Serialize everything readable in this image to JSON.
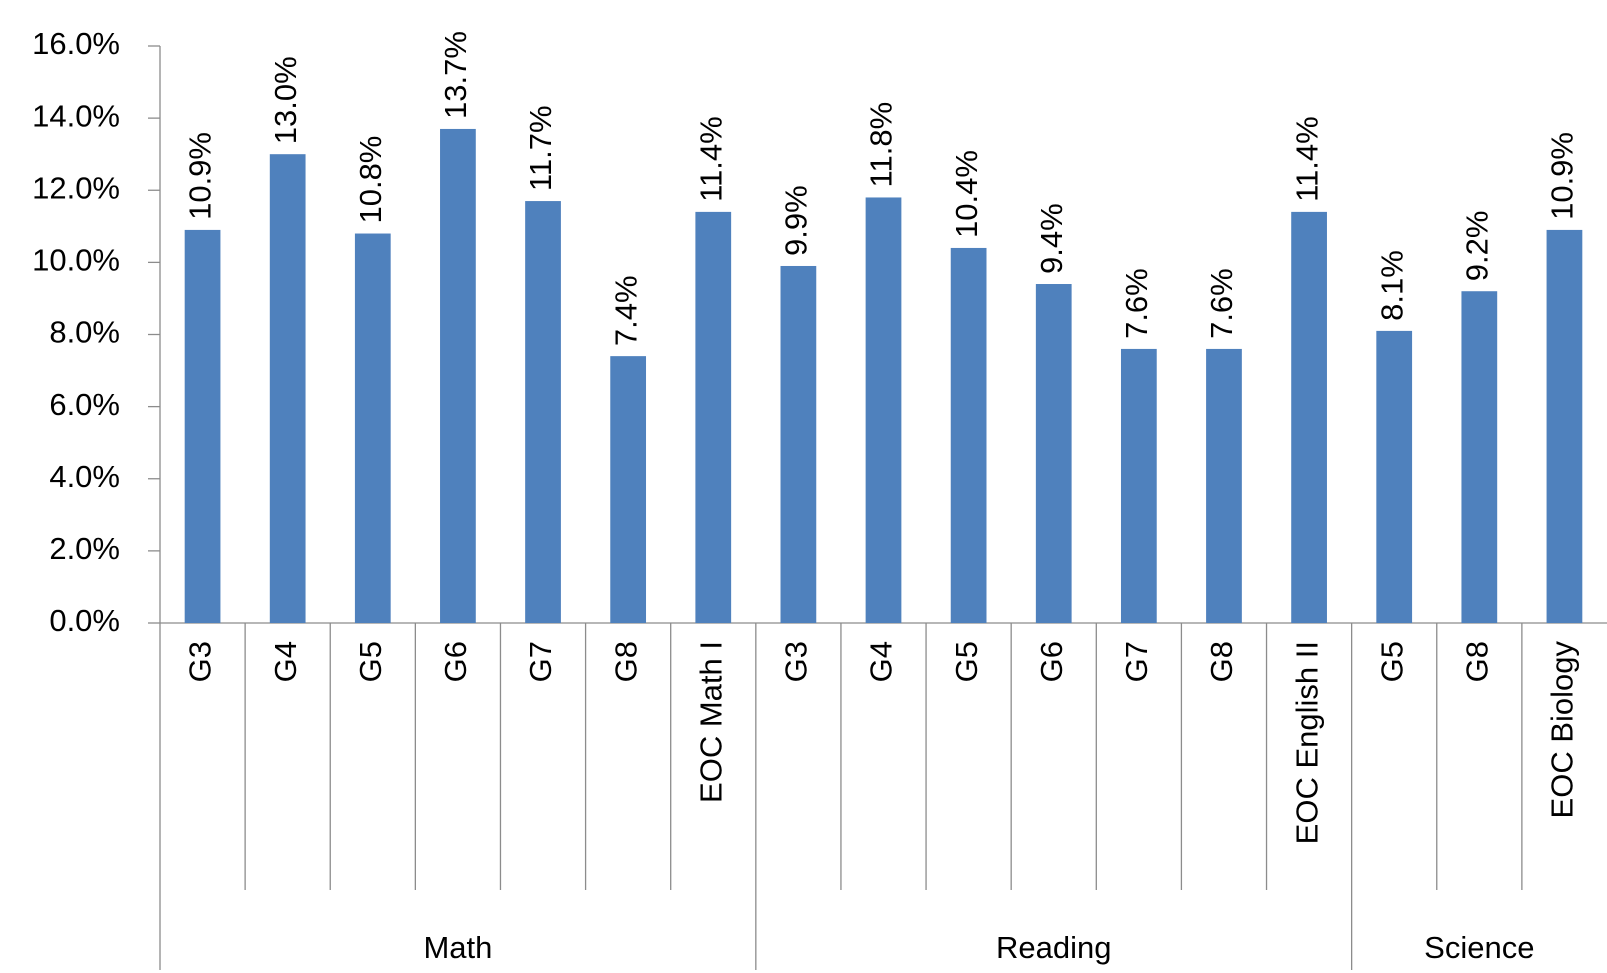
{
  "chart_data": {
    "type": "bar",
    "color": "#4f81bd",
    "ylim": [
      0,
      16
    ],
    "yticks": [
      {
        "value": 0,
        "label": "0.0%"
      },
      {
        "value": 2,
        "label": "2.0%"
      },
      {
        "value": 4,
        "label": "4.0%"
      },
      {
        "value": 6,
        "label": "6.0%"
      },
      {
        "value": 8,
        "label": "8.0%"
      },
      {
        "value": 10,
        "label": "10.0%"
      },
      {
        "value": 12,
        "label": "12.0%"
      },
      {
        "value": 14,
        "label": "14.0%"
      },
      {
        "value": 16,
        "label": "16.0%"
      }
    ],
    "groups": [
      {
        "name": "Math",
        "categories": [
          "G3",
          "G4",
          "G5",
          "G6",
          "G7",
          "G8",
          "EOC Math I"
        ],
        "values": [
          10.9,
          13.0,
          10.8,
          13.7,
          11.7,
          7.4,
          11.4
        ],
        "value_labels": [
          "10.9%",
          "13.0%",
          "10.8%",
          "13.7%",
          "11.7%",
          "7.4%",
          "11.4%"
        ]
      },
      {
        "name": "Reading",
        "categories": [
          "G3",
          "G4",
          "G5",
          "G6",
          "G7",
          "G8",
          "EOC English II"
        ],
        "values": [
          9.9,
          11.8,
          10.4,
          9.4,
          7.6,
          7.6,
          11.4
        ],
        "value_labels": [
          "9.9%",
          "11.8%",
          "10.4%",
          "9.4%",
          "7.6%",
          "7.6%",
          "11.4%"
        ]
      },
      {
        "name": "Science",
        "categories": [
          "G5",
          "G8",
          "EOC Biology"
        ],
        "values": [
          8.1,
          9.2,
          10.9
        ],
        "value_labels": [
          "8.1%",
          "9.2%",
          "10.9%"
        ]
      }
    ]
  }
}
